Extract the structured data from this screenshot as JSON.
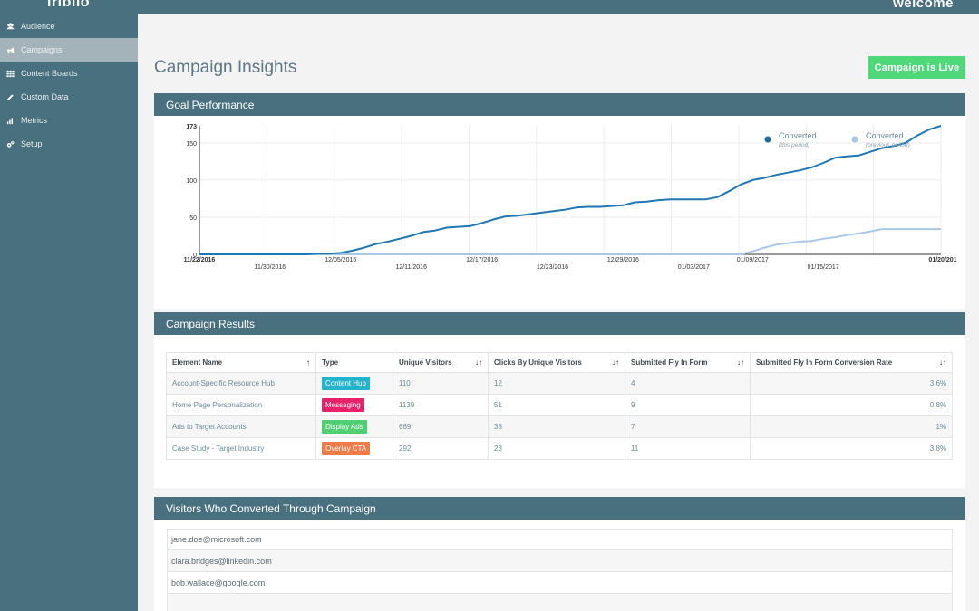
{
  "app": {
    "logo": "iriblio",
    "welcome": "welcome"
  },
  "sidebar": {
    "items": [
      {
        "label": "Audience",
        "icon": "users-icon",
        "active": false
      },
      {
        "label": "Campaigns",
        "icon": "megaphone-icon",
        "active": true
      },
      {
        "label": "Content Boards",
        "icon": "grid-icon",
        "active": false
      },
      {
        "label": "Custom Data",
        "icon": "pen-icon",
        "active": false
      },
      {
        "label": "Metrics",
        "icon": "bar-chart-icon",
        "active": false
      },
      {
        "label": "Setup",
        "icon": "gears-icon",
        "active": false
      }
    ]
  },
  "header": {
    "title": "Campaign Insights",
    "status_button": "Campaign is Live"
  },
  "goal_panel": {
    "title": "Goal Performance"
  },
  "chart_data": {
    "type": "line",
    "title": "",
    "xlabel": "",
    "ylabel": "",
    "ylim": [
      0,
      173
    ],
    "y_ticks": [
      "0",
      "50",
      "100",
      "150",
      "173"
    ],
    "x_ticks_row1": [
      "11/22/2016",
      "12/05/2016",
      "12/17/2016",
      "12/29/2016",
      "01/09/2017",
      "01/20/201"
    ],
    "x_ticks_row2": [
      "11/30/2016",
      "12/11/2016",
      "12/23/2016",
      "01/03/2017",
      "01/15/2017"
    ],
    "legend_position": "top-right",
    "series": [
      {
        "name": "Converted",
        "sub": "(this period)",
        "color": "#1f77b4",
        "values": [
          0,
          0,
          0,
          0,
          0,
          0,
          0,
          0,
          0,
          0,
          1,
          1,
          2,
          5,
          9,
          14,
          17,
          21,
          25,
          30,
          32,
          36,
          37,
          38,
          42,
          47,
          51,
          52,
          54,
          56,
          58,
          60,
          63,
          64,
          64,
          65,
          66,
          70,
          71,
          73,
          74,
          74,
          74,
          74,
          77,
          85,
          94,
          100,
          103,
          107,
          110,
          113,
          117,
          123,
          130,
          132,
          133,
          138,
          143,
          146,
          150,
          160,
          168,
          173
        ],
        "marker_color": "#1a6aa3"
      },
      {
        "name": "Converted",
        "sub": "(previous period)",
        "color": "#a8c8e8",
        "values": [
          0,
          0,
          0,
          0,
          0,
          0,
          0,
          0,
          0,
          0,
          0,
          0,
          0,
          0,
          0,
          0,
          0,
          0,
          0,
          0,
          0,
          0,
          0,
          0,
          0,
          0,
          0,
          0,
          0,
          0,
          0,
          0,
          0,
          0,
          0,
          0,
          0,
          0,
          0,
          0,
          0,
          0,
          0,
          0,
          0,
          0,
          0,
          4,
          9,
          13,
          15,
          17,
          18,
          21,
          23,
          26,
          28,
          31,
          34,
          34,
          34,
          34,
          34,
          34
        ],
        "marker_color": "#a8c8e8"
      }
    ]
  },
  "results_panel": {
    "title": "Campaign Results",
    "columns": [
      "Element Name",
      "Type",
      "Unique Visitors",
      "Clicks By Unique Visitors",
      "Submitted Fly In Form",
      "Submitted Fly In Form Conversion Rate"
    ],
    "sort_icons": [
      "↑",
      "",
      "↓↑",
      "↓↑",
      "↓↑",
      "↓↑"
    ],
    "rows": [
      {
        "name": "Account-Specific Resource Hub",
        "type": "Content Hub",
        "type_color": "#22b3cf",
        "visitors": "110",
        "clicks": "12",
        "submitted": "4",
        "rate": "3.6%"
      },
      {
        "name": "Home Page Personalization",
        "type": "Messaging",
        "type_color": "#e8216a",
        "visitors": "1139",
        "clicks": "51",
        "submitted": "9",
        "rate": "0.8%"
      },
      {
        "name": "Ads to Target Accounts",
        "type": "Display Ads",
        "type_color": "#4fcf72",
        "visitors": "669",
        "clicks": "38",
        "submitted": "7",
        "rate": "1%"
      },
      {
        "name": "Case Study - Target Industry",
        "type": "Overlay CTA",
        "type_color": "#f07a48",
        "visitors": "292",
        "clicks": "23",
        "submitted": "11",
        "rate": "3.8%"
      }
    ]
  },
  "visitors_panel": {
    "title": "Visitors Who Converted Through Campaign",
    "emails": [
      "jane.doe@microsoft.com",
      "clara.bridges@linkedin.com",
      "bob.wallace@google.com",
      ""
    ]
  }
}
